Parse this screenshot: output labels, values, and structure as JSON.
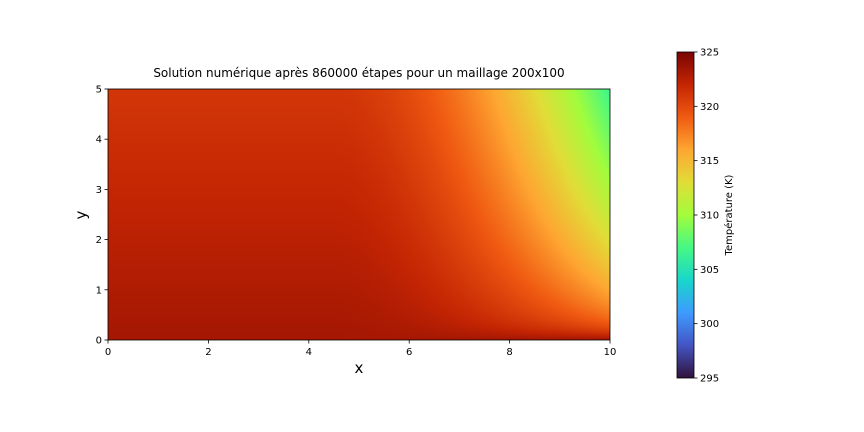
{
  "chart_data": {
    "type": "heatmap",
    "title": "Solution numérique après 860000 étapes pour un maillage 200x100",
    "xlabel": "x",
    "ylabel": "y",
    "xlim": [
      0,
      10
    ],
    "ylim": [
      0,
      5
    ],
    "x_ticks": [
      "0",
      "2",
      "4",
      "6",
      "8",
      "10"
    ],
    "y_ticks": [
      "0",
      "1",
      "2",
      "3",
      "4",
      "5"
    ],
    "grid": false,
    "colormap": "turbo",
    "colorbar": {
      "label": "Température (K)",
      "range": [
        295,
        325
      ],
      "ticks": [
        "295",
        "300",
        "305",
        "310",
        "315",
        "320",
        "325"
      ],
      "placement": "right"
    },
    "field_samples": {
      "description_units": "K",
      "points": [
        {
          "x": 0,
          "y": 0,
          "value": 323.5
        },
        {
          "x": 0,
          "y": 5,
          "value": 322.0
        },
        {
          "x": 4,
          "y": 5,
          "value": 321.0
        },
        {
          "x": 6,
          "y": 5,
          "value": 319.0
        },
        {
          "x": 7,
          "y": 5,
          "value": 316.5
        },
        {
          "x": 9,
          "y": 5,
          "value": 310.5
        },
        {
          "x": 10,
          "y": 5,
          "value": 307.5
        },
        {
          "x": 10,
          "y": 3,
          "value": 308.5
        },
        {
          "x": 10,
          "y": 1,
          "value": 314.0
        },
        {
          "x": 10,
          "y": 0,
          "value": 322.5
        },
        {
          "x": 5,
          "y": 0,
          "value": 323.5
        },
        {
          "x": 5,
          "y": 2.5,
          "value": 320.5
        }
      ]
    }
  }
}
